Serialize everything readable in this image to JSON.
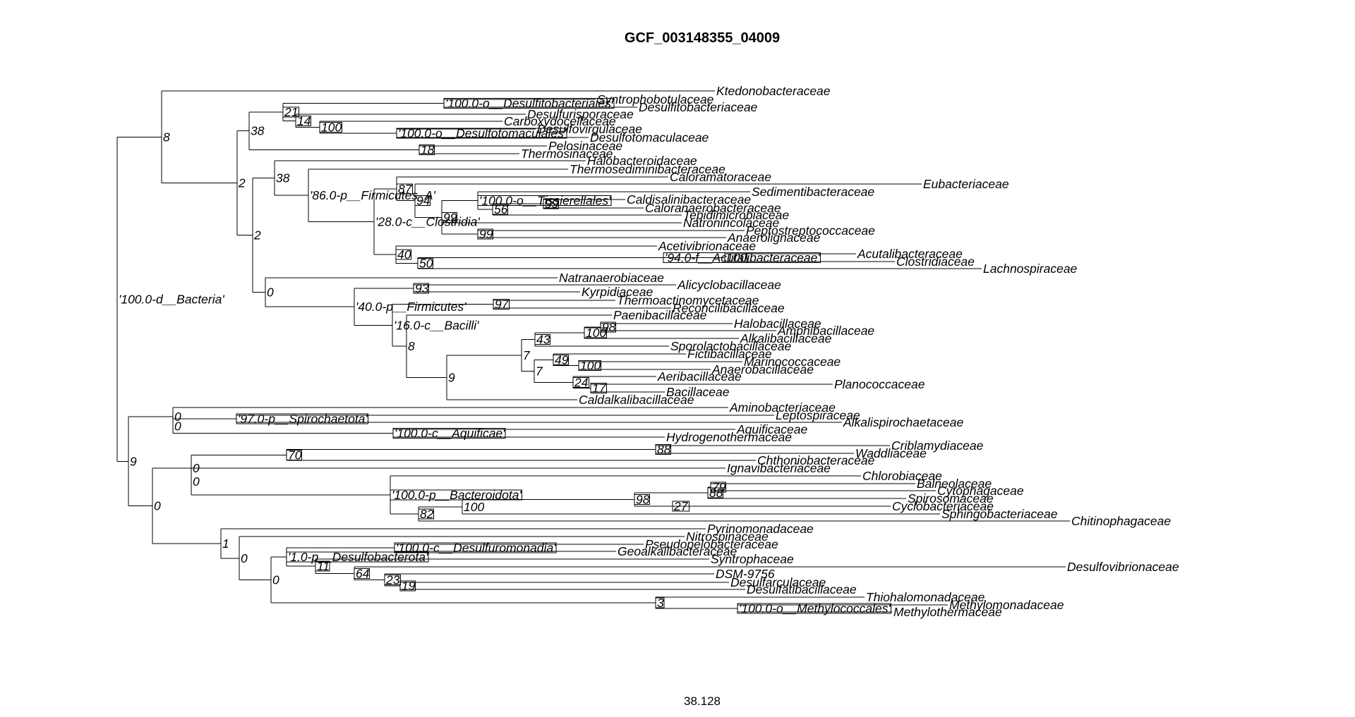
{
  "title": "GCF_003148355_04009",
  "scale_value": "38.128",
  "tree": {
    "nodes": [
      {
        "id": "root",
        "parent": null,
        "label": "'100.0-d__Bacteria'",
        "boxed": false
      },
      {
        "id": "n8",
        "parent": "root",
        "label": "8",
        "boxed": false
      },
      {
        "id": "n9",
        "parent": "root",
        "label": "9",
        "boxed": false
      },
      {
        "id": "t_ktedono",
        "parent": "n8",
        "label": "Ktedonobacteraceae",
        "leaf": true
      },
      {
        "id": "n2a",
        "parent": "n8",
        "label": "2",
        "boxed": false
      },
      {
        "id": "n38a",
        "parent": "n2a",
        "label": "38",
        "boxed": false
      },
      {
        "id": "n2b",
        "parent": "n2a",
        "label": "2",
        "boxed": false
      },
      {
        "id": "n21",
        "parent": "n38a",
        "label": "21",
        "boxed": true
      },
      {
        "id": "n18",
        "parent": "n38a",
        "label": "18",
        "boxed": true
      },
      {
        "id": "nDsfb",
        "parent": "n21",
        "label": "'100.0-o__Desulfitobacteriales'",
        "boxed": true
      },
      {
        "id": "n14",
        "parent": "n21",
        "label": "14",
        "boxed": true
      },
      {
        "id": "t_syntropho",
        "parent": "nDsfb",
        "label": "Syntrophobotulaceae",
        "leaf": true
      },
      {
        "id": "t_desulfitobact",
        "parent": "nDsfb",
        "label": "Desulfitobacteriaceae",
        "leaf": true
      },
      {
        "id": "t_desulfurisp",
        "parent": "n14",
        "label": "Desulfurisporaceae",
        "leaf": true
      },
      {
        "id": "n100a",
        "parent": "n14",
        "label": "100",
        "boxed": true
      },
      {
        "id": "t_carboxydo",
        "parent": "n100a",
        "label": "Carboxydocellaceae",
        "leaf": true
      },
      {
        "id": "nDsfm",
        "parent": "n100a",
        "label": "'100.0-o__Desulfotomaculales'",
        "boxed": true
      },
      {
        "id": "t_desulfovirg",
        "parent": "nDsfm",
        "label": "Desulfovirgulaceae",
        "leaf": true
      },
      {
        "id": "t_desulfotom",
        "parent": "nDsfm",
        "label": "Desulfotomaculaceae",
        "leaf": true
      },
      {
        "id": "t_pelosin",
        "parent": "n18",
        "label": "Pelosinaceae",
        "leaf": true
      },
      {
        "id": "t_thermosin",
        "parent": "n18",
        "label": "Thermosinaceae",
        "leaf": true
      },
      {
        "id": "n38b",
        "parent": "n2b",
        "label": "38",
        "boxed": false
      },
      {
        "id": "n0a",
        "parent": "n2b",
        "label": "0",
        "boxed": false
      },
      {
        "id": "t_halobacteroid",
        "parent": "n38b",
        "label": "Halobacteroidaceae",
        "leaf": true
      },
      {
        "id": "nFirmA",
        "parent": "n38b",
        "label": "'86.0-p__Firmicutes_A'",
        "boxed": false
      },
      {
        "id": "t_thermosedim",
        "parent": "nFirmA",
        "label": "Thermosediminibacteraceae",
        "leaf": true
      },
      {
        "id": "nClost",
        "parent": "nFirmA",
        "label": "'28.0-c__Clostridia'",
        "boxed": false
      },
      {
        "id": "n87",
        "parent": "nClost",
        "label": "87",
        "boxed": true
      },
      {
        "id": "n40",
        "parent": "nClost",
        "label": "40",
        "boxed": true
      },
      {
        "id": "t_caloramator",
        "parent": "n87",
        "label": "Caloramatoraceae",
        "leaf": true
      },
      {
        "id": "n94",
        "parent": "n87",
        "label": "94",
        "boxed": true
      },
      {
        "id": "t_eubact",
        "parent": "n94",
        "label": "Eubacteriaceae",
        "leaf": true
      },
      {
        "id": "n99a",
        "parent": "n94",
        "label": "99",
        "boxed": true
      },
      {
        "id": "nTiss",
        "parent": "n99a",
        "label": "'100.0-o__Tissierellales'",
        "boxed": true
      },
      {
        "id": "t_natronin",
        "parent": "n99a",
        "label": "Natronincolaceae",
        "leaf": true
      },
      {
        "id": "n99b",
        "parent": "n99a",
        "label": "99",
        "boxed": true
      },
      {
        "id": "t_sediment",
        "parent": "nTiss",
        "label": "Sedimentibacteraceae",
        "leaf": true
      },
      {
        "id": "n56",
        "parent": "nTiss",
        "label": "56",
        "boxed": true
      },
      {
        "id": "n99c",
        "parent": "n56",
        "label": "99",
        "boxed": true
      },
      {
        "id": "t_caldisal",
        "parent": "n99c",
        "label": "Caldisalinibacteraceae",
        "leaf": true
      },
      {
        "id": "t_caloranaer",
        "parent": "n99c",
        "label": "Caloranaerobacteraceae",
        "leaf": true
      },
      {
        "id": "t_tepidimicro",
        "parent": "n56",
        "label": "Tepidimicrobiaceae",
        "leaf": true
      },
      {
        "id": "t_peptostrep",
        "parent": "n99b",
        "label": "Peptostreptococcaceae",
        "leaf": true
      },
      {
        "id": "t_anaerolign",
        "parent": "n99b",
        "label": "Anaerolignaceae",
        "leaf": true
      },
      {
        "id": "t_acetivib",
        "parent": "n40",
        "label": "Acetivibrionaceae",
        "leaf": true
      },
      {
        "id": "n50",
        "parent": "n40",
        "label": "50",
        "boxed": true
      },
      {
        "id": "nAcut",
        "parent": "n50",
        "label": "'94.0-f__Acutalibacteraceae'",
        "boxed": true
      },
      {
        "id": "t_lachno",
        "parent": "n50",
        "label": "Lachnospiraceae",
        "leaf": true
      },
      {
        "id": "n100b",
        "parent": "nAcut",
        "label": "100",
        "boxed": true
      },
      {
        "id": "t_acutali",
        "parent": "n100b",
        "label": "Acutalibacteraceae",
        "leaf": true
      },
      {
        "id": "t_clostrid",
        "parent": "n100b",
        "label": "Clostridiaceae",
        "leaf": true
      },
      {
        "id": "t_natranaer",
        "parent": "n0a",
        "label": "Natranaerobiaceae",
        "leaf": true
      },
      {
        "id": "nFirm",
        "parent": "n0a",
        "label": "'40.0-p__Firmicutes'",
        "boxed": false
      },
      {
        "id": "n93",
        "parent": "nFirm",
        "label": "93",
        "boxed": true
      },
      {
        "id": "nBac",
        "parent": "nFirm",
        "label": "'16.0-c__Bacilli'",
        "boxed": false
      },
      {
        "id": "t_alicyclo",
        "parent": "n93",
        "label": "Alicyclobacillaceae",
        "leaf": true
      },
      {
        "id": "t_kyrpid",
        "parent": "n93",
        "label": "Kyrpidiaceae",
        "leaf": true
      },
      {
        "id": "n97",
        "parent": "nBac",
        "label": "97",
        "boxed": true
      },
      {
        "id": "n8b",
        "parent": "nBac",
        "label": "8",
        "boxed": false
      },
      {
        "id": "t_thermoactino",
        "parent": "n97",
        "label": "Thermoactinomycetaceae",
        "leaf": true
      },
      {
        "id": "t_reconcil",
        "parent": "n97",
        "label": "Reconcilibacillaceae",
        "leaf": true
      },
      {
        "id": "t_paeni",
        "parent": "n8b",
        "label": "Paenibacillaceae",
        "leaf": true
      },
      {
        "id": "n9b",
        "parent": "n8b",
        "label": "9",
        "boxed": false
      },
      {
        "id": "n7a",
        "parent": "n9b",
        "label": "7",
        "boxed": false
      },
      {
        "id": "t_caldalk",
        "parent": "n9b",
        "label": "Caldalkalibacillaceae",
        "leaf": true
      },
      {
        "id": "n43",
        "parent": "n7a",
        "label": "43",
        "boxed": true
      },
      {
        "id": "n7b",
        "parent": "n7a",
        "label": "7",
        "boxed": false
      },
      {
        "id": "n100c",
        "parent": "n43",
        "label": "100",
        "boxed": true
      },
      {
        "id": "t_sporolacto",
        "parent": "n43",
        "label": "Sporolactobacillaceae",
        "leaf": true
      },
      {
        "id": "n98a",
        "parent": "n100c",
        "label": "98",
        "boxed": true
      },
      {
        "id": "t_alkali",
        "parent": "n100c",
        "label": "Alkalibacillaceae",
        "leaf": true
      },
      {
        "id": "t_halobacil",
        "parent": "n98a",
        "label": "Halobacillaceae",
        "leaf": true
      },
      {
        "id": "t_amphibac",
        "parent": "n98a",
        "label": "Amphibacillaceae",
        "leaf": true
      },
      {
        "id": "n49",
        "parent": "n7b",
        "label": "49",
        "boxed": true
      },
      {
        "id": "n24",
        "parent": "n7b",
        "label": "24",
        "boxed": true
      },
      {
        "id": "t_fictib",
        "parent": "n49",
        "label": "Fictibacillaceae",
        "leaf": true
      },
      {
        "id": "n100d",
        "parent": "n49",
        "label": "100",
        "boxed": true
      },
      {
        "id": "t_marino",
        "parent": "n100d",
        "label": "Marinococcaceae",
        "leaf": true
      },
      {
        "id": "t_anaerobac",
        "parent": "n100d",
        "label": "Anaerobacillaceae",
        "leaf": true
      },
      {
        "id": "t_aeribac",
        "parent": "n24",
        "label": "Aeribacillaceae",
        "leaf": true
      },
      {
        "id": "n17",
        "parent": "n24",
        "label": "17",
        "boxed": true
      },
      {
        "id": "t_plano",
        "parent": "n17",
        "label": "Planococcaceae",
        "leaf": true
      },
      {
        "id": "t_bacillac",
        "parent": "n17",
        "label": "Bacillaceae",
        "leaf": true
      },
      {
        "id": "n0b",
        "parent": "n9",
        "label": "0",
        "boxed": false
      },
      {
        "id": "n0c",
        "parent": "n9",
        "label": "0",
        "boxed": false
      },
      {
        "id": "t_aminobact",
        "parent": "n0b",
        "label": "Aminobacteriaceae",
        "leaf": true
      },
      {
        "id": "n0d",
        "parent": "n0b",
        "label": "0",
        "boxed": false
      },
      {
        "id": "nSpiro",
        "parent": "n0d",
        "label": "'97.0-p__Spirochaetota'",
        "boxed": true
      },
      {
        "id": "nAquif",
        "parent": "n0d",
        "label": "'100.0-c__Aquificae'",
        "boxed": true
      },
      {
        "id": "t_leptospir",
        "parent": "nSpiro",
        "label": "Leptospiraceae",
        "leaf": true
      },
      {
        "id": "t_alkalispir",
        "parent": "nSpiro",
        "label": "Alkalispirochaetaceae",
        "leaf": true
      },
      {
        "id": "t_aquific",
        "parent": "nAquif",
        "label": "Aquificaceae",
        "leaf": true
      },
      {
        "id": "t_hydrogeno",
        "parent": "nAquif",
        "label": "Hydrogenothermaceae",
        "leaf": true
      },
      {
        "id": "n0e",
        "parent": "n0c",
        "label": "0",
        "boxed": false
      },
      {
        "id": "n1",
        "parent": "n0c",
        "label": "1",
        "boxed": false
      },
      {
        "id": "n70",
        "parent": "n0e",
        "label": "70",
        "boxed": true
      },
      {
        "id": "n0f",
        "parent": "n0e",
        "label": "0",
        "boxed": false
      },
      {
        "id": "n88a",
        "parent": "n70",
        "label": "88",
        "boxed": true
      },
      {
        "id": "t_chthonio",
        "parent": "n70",
        "label": "Chthoniobacteraceae",
        "leaf": true
      },
      {
        "id": "t_criblam",
        "parent": "n88a",
        "label": "Criblamydiaceae",
        "leaf": true
      },
      {
        "id": "t_waddli",
        "parent": "n88a",
        "label": "Waddliaceae",
        "leaf": true
      },
      {
        "id": "t_ignavib",
        "parent": "n0f",
        "label": "Ignavibacteriaceae",
        "leaf": true
      },
      {
        "id": "nBactd",
        "parent": "n0f",
        "label": "'100.0-p__Bacteroidota'",
        "boxed": true
      },
      {
        "id": "t_chlorobi",
        "parent": "nBactd",
        "label": "Chlorobiaceae",
        "leaf": true
      },
      {
        "id": "n82",
        "parent": "nBactd",
        "label": "82",
        "boxed": true
      },
      {
        "id": "n100e",
        "parent": "n82",
        "label": "100",
        "boxed": false
      },
      {
        "id": "t_chitino",
        "parent": "n82",
        "label": "Chitinophagaceae",
        "leaf": true
      },
      {
        "id": "n98b",
        "parent": "n100e",
        "label": "98",
        "boxed": true
      },
      {
        "id": "t_sphingo",
        "parent": "n100e",
        "label": "Sphingobacteriaceae",
        "leaf": true
      },
      {
        "id": "n88b",
        "parent": "n98b",
        "label": "88",
        "boxed": true
      },
      {
        "id": "n27",
        "parent": "n98b",
        "label": "27",
        "boxed": true
      },
      {
        "id": "n79",
        "parent": "n88b",
        "label": "79",
        "boxed": true
      },
      {
        "id": "t_spiroso",
        "parent": "n88b",
        "label": "Spirosomaceae",
        "leaf": true
      },
      {
        "id": "t_balneol",
        "parent": "n79",
        "label": "Balneolaceae",
        "leaf": true
      },
      {
        "id": "t_cytophag",
        "parent": "n79",
        "label": "Cytophagaceae",
        "leaf": true
      },
      {
        "id": "t_cyclobact",
        "parent": "n27",
        "label": "Cyclobacteriaceae",
        "leaf": true
      },
      {
        "id": "t_pyrino",
        "parent": "n1",
        "label": "Pyrinomonadaceae",
        "leaf": true
      },
      {
        "id": "n0g",
        "parent": "n1",
        "label": "0",
        "boxed": false
      },
      {
        "id": "t_nitrospin",
        "parent": "n0g",
        "label": "Nitrospinaceae",
        "leaf": true
      },
      {
        "id": "n0h",
        "parent": "n0g",
        "label": "0",
        "boxed": false
      },
      {
        "id": "nDsfbct",
        "parent": "n0h",
        "label": "'1.0-p__Desulfobacterota'",
        "boxed": true
      },
      {
        "id": "n3",
        "parent": "n0h",
        "label": "3",
        "boxed": true
      },
      {
        "id": "nDsfur",
        "parent": "nDsfbct",
        "label": "'100.0-c__Desulfuromonadia'",
        "boxed": true
      },
      {
        "id": "n11",
        "parent": "nDsfbct",
        "label": "11",
        "boxed": true
      },
      {
        "id": "t_pseudopel",
        "parent": "nDsfur",
        "label": "Pseudopelobacteraceae",
        "leaf": true
      },
      {
        "id": "t_geoalkali",
        "parent": "nDsfur",
        "label": "Geoalkalibacteraceae",
        "leaf": true
      },
      {
        "id": "t_syntroph",
        "parent": "n11",
        "label": "Syntrophaceae",
        "leaf": true
      },
      {
        "id": "n64",
        "parent": "n11",
        "label": "64",
        "boxed": true
      },
      {
        "id": "t_desulfovib",
        "parent": "n64",
        "label": "Desulfovibrionaceae",
        "leaf": true
      },
      {
        "id": "n23",
        "parent": "n64",
        "label": "23",
        "boxed": true
      },
      {
        "id": "t_dsm",
        "parent": "n23",
        "label": "DSM-9756",
        "leaf": true
      },
      {
        "id": "n19",
        "parent": "n23",
        "label": "19",
        "boxed": true
      },
      {
        "id": "t_desulfarc",
        "parent": "n19",
        "label": "Desulfarculaceae",
        "leaf": true
      },
      {
        "id": "t_desulfatib",
        "parent": "n19",
        "label": "Desulfatibacillaceae",
        "leaf": true
      },
      {
        "id": "t_thiohalo",
        "parent": "n3",
        "label": "Thiohalomonadaceae",
        "leaf": true
      },
      {
        "id": "nMethy",
        "parent": "n3",
        "label": "'100.0-o__Methylococcales'",
        "boxed": true
      },
      {
        "id": "t_methylomon",
        "parent": "nMethy",
        "label": "Methylomonadaceae",
        "leaf": true
      },
      {
        "id": "t_methylotherm",
        "parent": "nMethy",
        "label": "Methylothermaceae",
        "leaf": true
      }
    ]
  }
}
